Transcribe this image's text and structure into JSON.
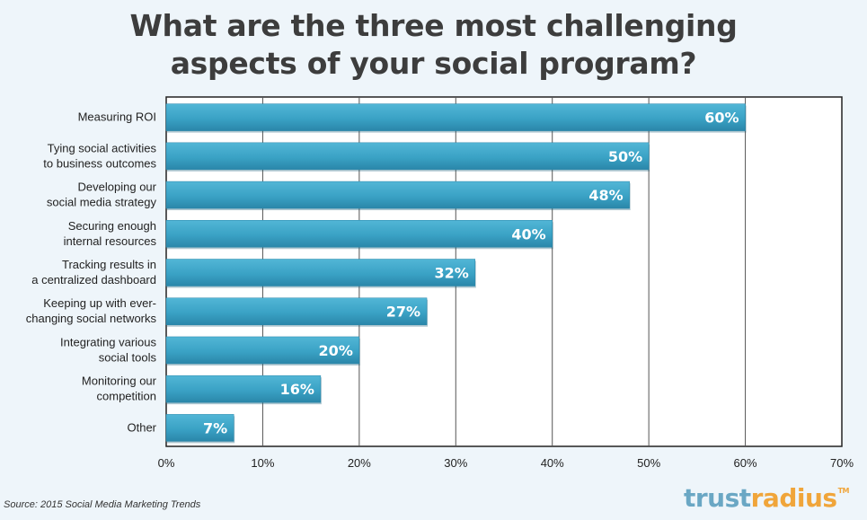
{
  "chart_data": {
    "type": "bar",
    "orientation": "horizontal",
    "title": [
      "What are the three most challenging",
      "aspects of your social program?"
    ],
    "categories": [
      [
        "Measuring ROI"
      ],
      [
        "Tying social activities",
        "to business outcomes"
      ],
      [
        "Developing our",
        "social media strategy"
      ],
      [
        "Securing enough",
        "internal resources"
      ],
      [
        "Tracking results in",
        "a centralized dashboard"
      ],
      [
        "Keeping up with ever-",
        "changing social networks"
      ],
      [
        "Integrating various",
        "social tools"
      ],
      [
        "Monitoring our",
        "competition"
      ],
      [
        "Other"
      ]
    ],
    "values": [
      60,
      50,
      48,
      40,
      32,
      27,
      20,
      16,
      7
    ],
    "value_labels": [
      "60%",
      "50%",
      "48%",
      "40%",
      "32%",
      "27%",
      "20%",
      "16%",
      "7%"
    ],
    "xlim": [
      0,
      70
    ],
    "xticks": [
      0,
      10,
      20,
      30,
      40,
      50,
      60,
      70
    ],
    "xtick_labels": [
      "0%",
      "10%",
      "20%",
      "30%",
      "40%",
      "50%",
      "60%",
      "70%"
    ],
    "grid": true,
    "bar_color": "#3ba3c6",
    "bar_color_dark": "#2a87aa"
  },
  "source": "Source: 2015 Social Media Marketing Trends",
  "logo": {
    "part1": "trust",
    "part2": "radius",
    "tm": "TM"
  }
}
